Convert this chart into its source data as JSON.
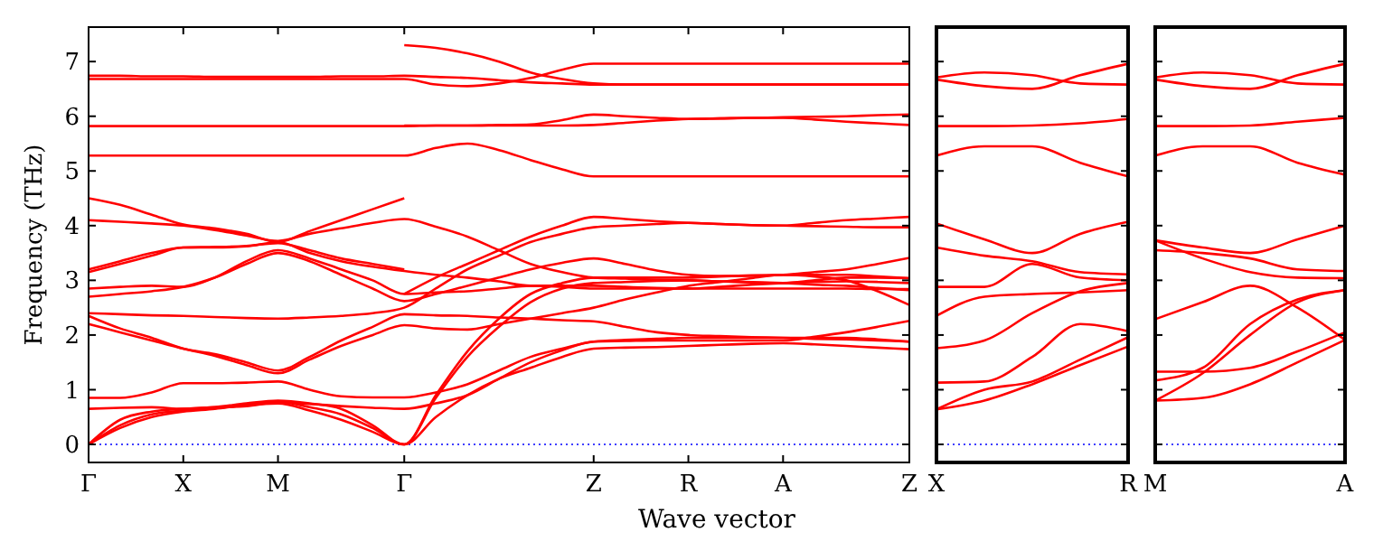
{
  "chart_data": [
    {
      "type": "line",
      "xlabel": "Wave vector",
      "ylabel": "Frequency (THz)",
      "categories": [
        "Γ",
        null,
        null,
        "X",
        null,
        null,
        "M",
        null,
        null,
        null,
        "Γ",
        null,
        null,
        null,
        null,
        null,
        "Z",
        null,
        null,
        "R",
        null,
        null,
        "A",
        null,
        null,
        null,
        "Z"
      ],
      "ylim": [
        -0.33,
        7.63
      ],
      "yticks": [
        0,
        1,
        2,
        3,
        4,
        5,
        6,
        7
      ],
      "ref_lines": [
        {
          "axis": "y",
          "value": 0,
          "color": "#0000ff",
          "line_style": "dotted"
        }
      ],
      "series": [
        {
          "color": "#ff0000",
          "values": [
            0,
            0.3,
            0.5,
            0.6,
            0.65,
            0.72,
            0.75,
            0.62,
            0.45,
            0.23,
            0,
            0.5,
            0.9,
            1.2,
            1.4,
            1.6,
            1.75,
            1.77,
            1.78,
            1.8,
            1.82,
            1.84,
            1.85,
            1.83,
            1.8,
            1.77,
            1.74
          ]
        },
        {
          "color": "#ff0000",
          "values": [
            0,
            0.35,
            0.55,
            0.62,
            0.66,
            0.72,
            0.78,
            0.68,
            0.55,
            0.3,
            0,
            0.85,
            1.6,
            2.15,
            2.6,
            2.85,
            2.95,
            2.97,
            2.99,
            3.0,
            2.98,
            2.97,
            2.95,
            2.92,
            2.9,
            2.86,
            2.82
          ]
        },
        {
          "color": "#ff0000",
          "values": [
            0,
            0.45,
            0.6,
            0.65,
            0.68,
            0.75,
            0.8,
            0.75,
            0.65,
            0.35,
            0,
            0.9,
            1.7,
            2.3,
            2.75,
            2.95,
            3.05,
            3.05,
            3.05,
            3.05,
            3.07,
            3.09,
            3.1,
            3.1,
            3.1,
            3.07,
            3.04
          ]
        },
        {
          "color": "#ff0000",
          "values": [
            0.65,
            0.67,
            0.68,
            0.65,
            0.68,
            0.7,
            0.77,
            0.74,
            0.7,
            0.67,
            0.65,
            0.75,
            0.9,
            1.2,
            1.5,
            1.72,
            1.88,
            1.89,
            1.9,
            1.9,
            1.9,
            1.9,
            1.9,
            1.97,
            2.05,
            2.15,
            2.26
          ]
        },
        {
          "color": "#ff0000",
          "values": [
            0.85,
            0.85,
            0.95,
            1.12,
            1.12,
            1.13,
            1.15,
            1.0,
            0.88,
            0.86,
            0.86,
            0.95,
            1.1,
            1.35,
            1.6,
            1.75,
            1.88,
            1.91,
            1.93,
            1.95,
            1.95,
            1.95,
            1.95,
            1.95,
            1.95,
            1.92,
            1.88
          ]
        },
        {
          "color": "#ff0000",
          "values": [
            2.2,
            2.05,
            1.9,
            1.75,
            1.62,
            1.45,
            1.3,
            1.55,
            1.8,
            2.0,
            2.18,
            2.12,
            2.1,
            2.2,
            2.3,
            2.4,
            2.5,
            2.65,
            2.78,
            2.9,
            2.97,
            3.04,
            3.1,
            3.07,
            3.0,
            2.8,
            2.55
          ]
        },
        {
          "color": "#ff0000",
          "values": [
            2.35,
            2.12,
            1.95,
            1.75,
            1.65,
            1.5,
            1.35,
            1.6,
            1.9,
            2.15,
            2.38,
            2.36,
            2.35,
            2.32,
            2.3,
            2.27,
            2.25,
            2.15,
            2.05,
            2.0,
            1.98,
            1.96,
            1.95,
            1.93,
            1.92,
            1.9,
            1.88
          ]
        },
        {
          "color": "#ff0000",
          "values": [
            2.4,
            2.38,
            2.36,
            2.35,
            2.33,
            2.31,
            2.3,
            2.32,
            2.35,
            2.4,
            2.5,
            2.85,
            3.2,
            3.45,
            3.7,
            3.85,
            3.97,
            4.0,
            4.03,
            4.05,
            4.03,
            4.01,
            4.0,
            3.99,
            3.98,
            3.97,
            3.97
          ]
        },
        {
          "color": "#ff0000",
          "values": [
            2.7,
            2.75,
            2.8,
            2.88,
            3.05,
            3.3,
            3.5,
            3.35,
            3.1,
            2.85,
            2.62,
            2.75,
            2.9,
            3.05,
            3.2,
            3.32,
            3.4,
            3.3,
            3.18,
            3.1,
            3.08,
            3.08,
            3.1,
            3.15,
            3.2,
            3.3,
            3.41
          ]
        },
        {
          "color": "#ff0000",
          "values": [
            2.85,
            2.88,
            2.9,
            2.88,
            3.05,
            3.35,
            3.55,
            3.4,
            3.2,
            3.0,
            2.75,
            2.78,
            2.8,
            2.85,
            2.9,
            2.88,
            2.85,
            2.85,
            2.85,
            2.85,
            2.85,
            2.85,
            2.85,
            2.85,
            2.85,
            2.84,
            2.84
          ]
        },
        {
          "color": "#ff0000",
          "values": [
            3.15,
            3.3,
            3.45,
            3.6,
            3.6,
            3.62,
            3.7,
            3.5,
            3.35,
            3.25,
            3.17,
            3.1,
            3.05,
            2.98,
            2.9,
            2.9,
            2.9,
            2.88,
            2.86,
            2.85,
            2.88,
            2.92,
            2.95,
            2.97,
            2.98,
            2.97,
            2.95
          ]
        },
        {
          "color": "#ff0000",
          "values": [
            3.2,
            3.35,
            3.5,
            3.6,
            3.61,
            3.63,
            3.68,
            3.55,
            3.4,
            3.3,
            3.2,
            null,
            null,
            null,
            null,
            null,
            null,
            null,
            null,
            null,
            null,
            null,
            null,
            null,
            null,
            null,
            null
          ]
        },
        {
          "color": "#ff0000",
          "values": [
            4.1,
            4.07,
            4.04,
            4.0,
            3.92,
            3.82,
            3.72,
            3.85,
            3.95,
            4.05,
            4.12,
            3.98,
            3.8,
            3.55,
            3.3,
            3.15,
            3.05,
            3.03,
            3.01,
            3.0,
            2.98,
            2.96,
            2.95,
            3.0,
            3.05,
            3.05,
            3.04
          ]
        },
        {
          "color": "#ff0000",
          "values": [
            4.5,
            4.38,
            4.2,
            4.02,
            3.95,
            3.85,
            3.7,
            3.9,
            4.1,
            4.3,
            4.5,
            null,
            null,
            null,
            null,
            null,
            null,
            null,
            null,
            null,
            null,
            null,
            null,
            null,
            null,
            null,
            null
          ]
        },
        {
          "color": "#ff0000",
          "values": [
            5.28,
            5.28,
            5.28,
            5.28,
            5.28,
            5.28,
            5.28,
            5.28,
            5.28,
            5.28,
            5.28,
            5.42,
            5.5,
            5.38,
            5.2,
            5.03,
            4.9,
            4.9,
            4.9,
            4.9,
            4.9,
            4.9,
            4.9,
            4.9,
            4.9,
            4.9,
            4.9
          ]
        },
        {
          "color": "#ff0000",
          "values": [
            5.82,
            5.82,
            5.82,
            5.82,
            5.82,
            5.82,
            5.82,
            5.82,
            5.82,
            5.82,
            5.82,
            5.83,
            5.83,
            5.83,
            5.83,
            5.83,
            5.84,
            5.88,
            5.92,
            5.95,
            5.96,
            5.97,
            5.97,
            5.94,
            5.9,
            5.87,
            5.84
          ]
        },
        {
          "color": "#ff0000",
          "values": [
            6.68,
            6.68,
            6.68,
            6.68,
            6.68,
            6.68,
            6.68,
            6.68,
            6.68,
            6.68,
            6.68,
            6.58,
            6.55,
            6.6,
            6.7,
            6.85,
            6.96,
            6.96,
            6.96,
            6.96,
            6.96,
            6.96,
            6.96,
            6.96,
            6.96,
            6.96,
            6.96
          ]
        },
        {
          "color": "#ff0000",
          "values": [
            6.74,
            6.74,
            6.73,
            6.73,
            6.72,
            6.72,
            6.72,
            6.72,
            6.73,
            6.73,
            6.74,
            6.72,
            6.7,
            6.66,
            6.62,
            6.6,
            6.58,
            6.58,
            6.58,
            6.58,
            6.58,
            6.58,
            6.58,
            6.58,
            6.58,
            6.58,
            6.58
          ]
        },
        {
          "color": "#ff0000",
          "values": [
            null,
            null,
            null,
            null,
            null,
            null,
            null,
            null,
            null,
            null,
            2.75,
            3.05,
            3.3,
            3.55,
            3.8,
            4.0,
            4.16,
            4.12,
            4.08,
            4.05,
            4.03,
            4.01,
            4.0,
            4.05,
            4.1,
            4.13,
            4.16
          ]
        },
        {
          "color": "#ff0000",
          "values": [
            null,
            null,
            null,
            null,
            null,
            null,
            null,
            null,
            null,
            null,
            5.83,
            5.83,
            5.83,
            5.84,
            5.85,
            5.93,
            6.03,
            6.0,
            5.97,
            5.95,
            5.96,
            5.97,
            5.98,
            5.99,
            6.0,
            6.02,
            6.03
          ]
        },
        {
          "color": "#ff0000",
          "values": [
            null,
            null,
            null,
            null,
            null,
            null,
            null,
            null,
            null,
            null,
            7.3,
            7.25,
            7.15,
            7.0,
            6.8,
            6.68,
            6.6,
            6.58,
            6.58,
            6.58,
            6.58,
            6.58,
            6.58,
            6.58,
            6.58,
            6.58,
            6.58
          ]
        }
      ]
    },
    {
      "type": "line",
      "tick_labels": "x",
      "categories": [
        "X",
        null,
        null,
        null,
        "R"
      ],
      "ylim": [
        -0.33,
        7.63
      ],
      "yticks": [
        0,
        1,
        2,
        3,
        4,
        5,
        6,
        7
      ],
      "ref_lines": [
        {
          "axis": "y",
          "value": 0,
          "color": "#0000ff",
          "line_style": "dotted"
        }
      ],
      "series": [
        {
          "color": "#ff0000",
          "values": [
            0.64,
            0.8,
            1.1,
            1.45,
            1.79
          ]
        },
        {
          "color": "#ff0000",
          "values": [
            0.64,
            1.0,
            1.15,
            1.55,
            1.96
          ]
        },
        {
          "color": "#ff0000",
          "values": [
            1.13,
            1.15,
            1.6,
            2.2,
            2.07
          ]
        },
        {
          "color": "#ff0000",
          "values": [
            1.76,
            1.9,
            2.4,
            2.8,
            2.95
          ]
        },
        {
          "color": "#ff0000",
          "values": [
            2.35,
            2.7,
            2.75,
            2.78,
            2.82
          ]
        },
        {
          "color": "#ff0000",
          "values": [
            2.88,
            2.88,
            3.3,
            3.05,
            3.0
          ]
        },
        {
          "color": "#ff0000",
          "values": [
            3.6,
            3.45,
            3.35,
            3.15,
            3.11
          ]
        },
        {
          "color": "#ff0000",
          "values": [
            4.04,
            3.75,
            3.5,
            3.85,
            4.07
          ]
        },
        {
          "color": "#ff0000",
          "values": [
            5.28,
            5.45,
            5.45,
            5.15,
            4.9
          ]
        },
        {
          "color": "#ff0000",
          "values": [
            5.82,
            5.82,
            5.83,
            5.87,
            5.95
          ]
        },
        {
          "color": "#ff0000",
          "values": [
            6.71,
            6.8,
            6.75,
            6.6,
            6.58
          ]
        },
        {
          "color": "#ff0000",
          "values": [
            6.67,
            6.55,
            6.5,
            6.75,
            6.96
          ]
        }
      ]
    },
    {
      "type": "line",
      "tick_labels": "x",
      "categories": [
        "M",
        null,
        null,
        null,
        "A"
      ],
      "ylim": [
        -0.33,
        7.63
      ],
      "yticks": [
        0,
        1,
        2,
        3,
        4,
        5,
        6,
        7
      ],
      "ref_lines": [
        {
          "axis": "y",
          "value": 0,
          "color": "#0000ff",
          "line_style": "dotted"
        }
      ],
      "series": [
        {
          "color": "#ff0000",
          "values": [
            0.8,
            0.85,
            1.1,
            1.5,
            1.91
          ]
        },
        {
          "color": "#ff0000",
          "values": [
            0.8,
            1.3,
            2.0,
            2.6,
            2.82
          ]
        },
        {
          "color": "#ff0000",
          "values": [
            1.17,
            1.4,
            2.2,
            2.65,
            2.82
          ]
        },
        {
          "color": "#ff0000",
          "values": [
            1.33,
            1.33,
            1.4,
            1.7,
            2.05
          ]
        },
        {
          "color": "#ff0000",
          "values": [
            2.29,
            2.6,
            2.9,
            2.5,
            1.91
          ]
        },
        {
          "color": "#ff0000",
          "values": [
            3.55,
            3.5,
            3.4,
            3.2,
            3.17
          ]
        },
        {
          "color": "#ff0000",
          "values": [
            3.73,
            3.4,
            3.15,
            3.05,
            3.04
          ]
        },
        {
          "color": "#ff0000",
          "values": [
            3.73,
            3.6,
            3.5,
            3.75,
            4.0
          ]
        },
        {
          "color": "#ff0000",
          "values": [
            5.28,
            5.45,
            5.45,
            5.15,
            4.93
          ]
        },
        {
          "color": "#ff0000",
          "values": [
            5.82,
            5.82,
            5.83,
            5.9,
            5.97
          ]
        },
        {
          "color": "#ff0000",
          "values": [
            6.71,
            6.8,
            6.75,
            6.6,
            6.58
          ]
        },
        {
          "color": "#ff0000",
          "values": [
            6.67,
            6.55,
            6.5,
            6.75,
            6.96
          ]
        }
      ]
    }
  ]
}
